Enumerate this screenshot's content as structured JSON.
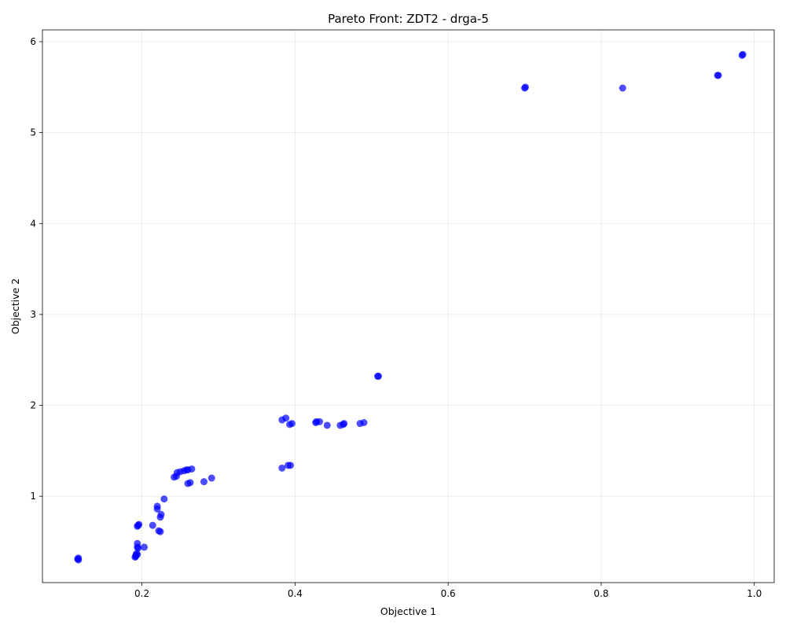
{
  "chart_data": {
    "type": "scatter",
    "title": "Pareto Front: ZDT2 - drga-5",
    "xlabel": "Objective 1",
    "ylabel": "Objective 2",
    "xlim": [
      0.07,
      1.026
    ],
    "ylim": [
      0.05,
      6.13
    ],
    "xticks": [
      0.2,
      0.4,
      0.6,
      0.8,
      1.0
    ],
    "xtick_labels": [
      "0.2",
      "0.4",
      "0.6",
      "0.8",
      "1.0"
    ],
    "yticks": [
      1,
      2,
      3,
      4,
      5,
      6
    ],
    "ytick_labels": [
      "1",
      "2",
      "3",
      "4",
      "5",
      "6"
    ],
    "grid": true,
    "marker_color": "#0000ff",
    "marker_alpha": 0.7,
    "points": [
      [
        0.117,
        0.32
      ],
      [
        0.116,
        0.31
      ],
      [
        0.117,
        0.3
      ],
      [
        0.191,
        0.33
      ],
      [
        0.192,
        0.35
      ],
      [
        0.193,
        0.37
      ],
      [
        0.194,
        0.36
      ],
      [
        0.192,
        0.34
      ],
      [
        0.194,
        0.44
      ],
      [
        0.194,
        0.48
      ],
      [
        0.195,
        0.43
      ],
      [
        0.203,
        0.44
      ],
      [
        0.194,
        0.67
      ],
      [
        0.196,
        0.69
      ],
      [
        0.195,
        0.68
      ],
      [
        0.214,
        0.68
      ],
      [
        0.222,
        0.62
      ],
      [
        0.224,
        0.61
      ],
      [
        0.224,
        0.77
      ],
      [
        0.225,
        0.8
      ],
      [
        0.22,
        0.86
      ],
      [
        0.22,
        0.89
      ],
      [
        0.229,
        0.97
      ],
      [
        0.242,
        1.21
      ],
      [
        0.245,
        1.22
      ],
      [
        0.246,
        1.26
      ],
      [
        0.25,
        1.27
      ],
      [
        0.255,
        1.28
      ],
      [
        0.258,
        1.29
      ],
      [
        0.26,
        1.29
      ],
      [
        0.265,
        1.3
      ],
      [
        0.26,
        1.14
      ],
      [
        0.263,
        1.15
      ],
      [
        0.281,
        1.16
      ],
      [
        0.291,
        1.2
      ],
      [
        0.383,
        1.31
      ],
      [
        0.391,
        1.34
      ],
      [
        0.394,
        1.34
      ],
      [
        0.383,
        1.84
      ],
      [
        0.388,
        1.86
      ],
      [
        0.393,
        1.79
      ],
      [
        0.396,
        1.8
      ],
      [
        0.427,
        1.81
      ],
      [
        0.428,
        1.82
      ],
      [
        0.432,
        1.82
      ],
      [
        0.442,
        1.78
      ],
      [
        0.459,
        1.78
      ],
      [
        0.463,
        1.79
      ],
      [
        0.464,
        1.8
      ],
      [
        0.485,
        1.8
      ],
      [
        0.49,
        1.81
      ],
      [
        0.508,
        2.32
      ],
      [
        0.509,
        2.32
      ],
      [
        0.7,
        5.49
      ],
      [
        0.701,
        5.5
      ],
      [
        0.828,
        5.49
      ],
      [
        0.952,
        5.63
      ],
      [
        0.953,
        5.63
      ],
      [
        0.984,
        5.85
      ],
      [
        0.985,
        5.86
      ]
    ]
  }
}
